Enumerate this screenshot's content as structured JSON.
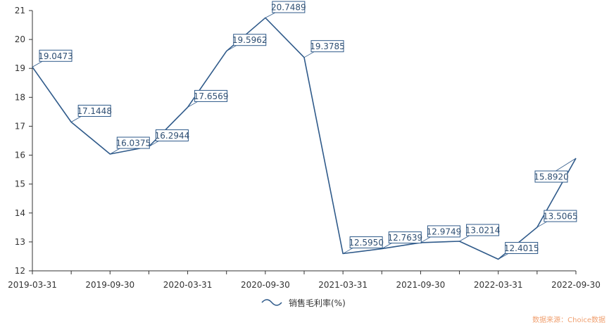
{
  "chart_data": {
    "type": "line",
    "x": [
      "2019-03-31",
      "2019-06-30",
      "2019-09-30",
      "2019-12-31",
      "2020-03-31",
      "2020-06-30",
      "2020-09-30",
      "2020-12-31",
      "2021-03-31",
      "2021-06-30",
      "2021-09-30",
      "2021-12-31",
      "2022-03-31",
      "2022-06-30",
      "2022-09-30"
    ],
    "x_tick_labels": [
      "2019-03-31",
      "2019-09-30",
      "2020-03-31",
      "2020-09-30",
      "2021-03-31",
      "2021-09-30",
      "2022-03-31",
      "2022-09-30"
    ],
    "series": [
      {
        "name": "销售毛利率(%)",
        "values": [
          19.0473,
          17.1448,
          16.0375,
          16.2944,
          17.6569,
          19.5962,
          20.7489,
          19.3785,
          12.595,
          12.7639,
          12.9749,
          13.0214,
          12.4015,
          13.5065,
          15.892
        ],
        "color": "#2f5a8a"
      }
    ],
    "ylim": [
      12,
      21
    ],
    "y_ticks": [
      12,
      13,
      14,
      15,
      16,
      17,
      18,
      19,
      20,
      21
    ],
    "legend": "bottom-center",
    "grid": false,
    "source": "数据来源：Choice数据"
  }
}
